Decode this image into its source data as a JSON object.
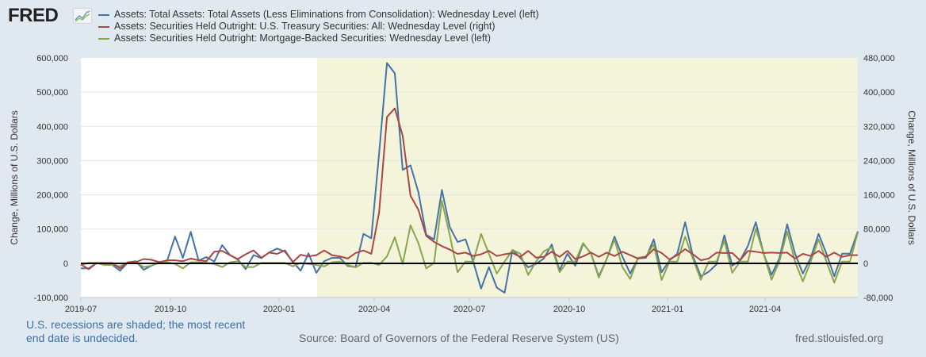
{
  "header": {
    "logo": "FRED",
    "legend": [
      {
        "label": "Assets: Total Assets: Total Assets (Less Eliminations from Consolidation): Wednesday Level (left)",
        "color": "#4572a7"
      },
      {
        "label": "Assets: Securities Held Outright: U.S. Treasury Securities: All: Wednesday Level (right)",
        "color": "#aa4643"
      },
      {
        "label": "Assets: Securities Held Outright: Mortgage-Backed Securities: Wednesday Level (left)",
        "color": "#89a54e"
      }
    ]
  },
  "footer": {
    "note_line1": "U.S. recessions are shaded; the most recent",
    "note_line2": "end date is undecided.",
    "source": "Source: Board of Governors of the Federal Reserve System (US)",
    "site": "fred.stlouisfed.org"
  },
  "chart_data": {
    "type": "line",
    "frequency": "weekly",
    "x_start": "2019-07",
    "x_end": "2021-05",
    "recession_start": "2020-02",
    "ylabel_left": "Change, Millions of U.S. Dollars",
    "ylabel_right": "Change, Millions of U.S. Dollars",
    "ylim_left": [
      -100000,
      600000
    ],
    "ylim_right": [
      -80000,
      480000
    ],
    "yticks_left": [
      "600,000",
      "500,000",
      "400,000",
      "300,000",
      "200,000",
      "100,000",
      "0",
      "-100,000"
    ],
    "yticks_right": [
      "480,000",
      "400,000",
      "320,000",
      "240,000",
      "160,000",
      "80,000",
      "0",
      "-80,000"
    ],
    "xticks": [
      "2019-07",
      "2019-10",
      "2020-01",
      "2020-04",
      "2020-07",
      "2020-10",
      "2021-01",
      "2021-04"
    ],
    "series": [
      {
        "name": "Total Assets",
        "axis": "left",
        "color": "#4572a7",
        "values_thousands": [
          -15,
          -15,
          1,
          -5,
          -5,
          -22,
          3,
          6,
          -19,
          -7,
          3,
          8,
          78,
          16,
          92,
          8,
          18,
          5,
          53,
          24,
          11,
          -17,
          24,
          15,
          32,
          43,
          34,
          5,
          -22,
          29,
          -28,
          6,
          16,
          16,
          -8,
          -11,
          86,
          73,
          321,
          585,
          555,
          273,
          286,
          208,
          83,
          70,
          214,
          106,
          62,
          70,
          5,
          -74,
          -11,
          -71,
          -86,
          39,
          16,
          -12,
          -2,
          14,
          55,
          -20,
          28,
          -7,
          57,
          29,
          -38,
          12,
          78,
          20,
          -30,
          14,
          16,
          70,
          -26,
          8,
          28,
          120,
          20,
          -38,
          -25,
          -3,
          82,
          -7,
          8,
          51,
          120,
          28,
          -34,
          14,
          114,
          28,
          -30,
          16,
          86,
          28,
          -38,
          28,
          28,
          93
        ]
      },
      {
        "name": "U.S. Treasury Securities",
        "axis": "right",
        "color": "#aa4643",
        "values_thousands": [
          -2.5,
          -14,
          0.6,
          0.6,
          0.6,
          -12,
          2.5,
          2.5,
          10,
          8,
          2.5,
          7,
          7,
          5,
          11,
          7,
          5,
          27,
          29,
          19,
          10,
          21,
          30,
          13,
          25,
          22,
          30,
          2.5,
          20,
          16,
          19,
          30,
          19,
          16,
          11,
          24,
          30,
          22,
          119,
          342,
          362,
          298,
          158,
          125,
          64,
          50,
          40,
          32,
          22,
          25,
          17,
          21,
          29,
          17,
          21,
          24,
          15,
          29,
          13,
          15,
          27,
          15,
          29,
          10,
          16,
          25,
          15,
          25,
          17,
          27,
          19,
          11,
          15,
          33,
          24,
          9,
          19,
          33,
          21,
          7,
          11,
          25,
          24,
          24,
          7,
          29,
          27,
          24,
          25,
          24,
          25,
          11,
          22,
          17,
          29,
          15,
          25,
          15,
          19,
          19
        ]
      },
      {
        "name": "Mortgage-Backed Securities",
        "axis": "left",
        "color": "#89a54e",
        "values_thousands": [
          -5,
          1,
          1,
          -5,
          -5,
          -9,
          3,
          3,
          -11,
          -7,
          3,
          3,
          -2,
          -15,
          3,
          3,
          1,
          -2,
          -11,
          3,
          6,
          -11,
          -11,
          1,
          1,
          1,
          1,
          -9,
          1,
          -2,
          -5,
          -9,
          3,
          5,
          -5,
          -12,
          1,
          1,
          -5,
          20,
          76,
          -2,
          111,
          59,
          -15,
          1,
          182,
          82,
          -26,
          5,
          5,
          86,
          28,
          -30,
          5,
          39,
          28,
          -34,
          5,
          35,
          47,
          -26,
          5,
          5,
          59,
          28,
          -42,
          12,
          70,
          -11,
          -46,
          16,
          20,
          55,
          -49,
          5,
          5,
          78,
          12,
          -48,
          5,
          5,
          66,
          -28,
          5,
          5,
          101,
          28,
          -48,
          5,
          93,
          5,
          -53,
          5,
          70,
          5,
          -57,
          5,
          5,
          90
        ]
      }
    ]
  }
}
